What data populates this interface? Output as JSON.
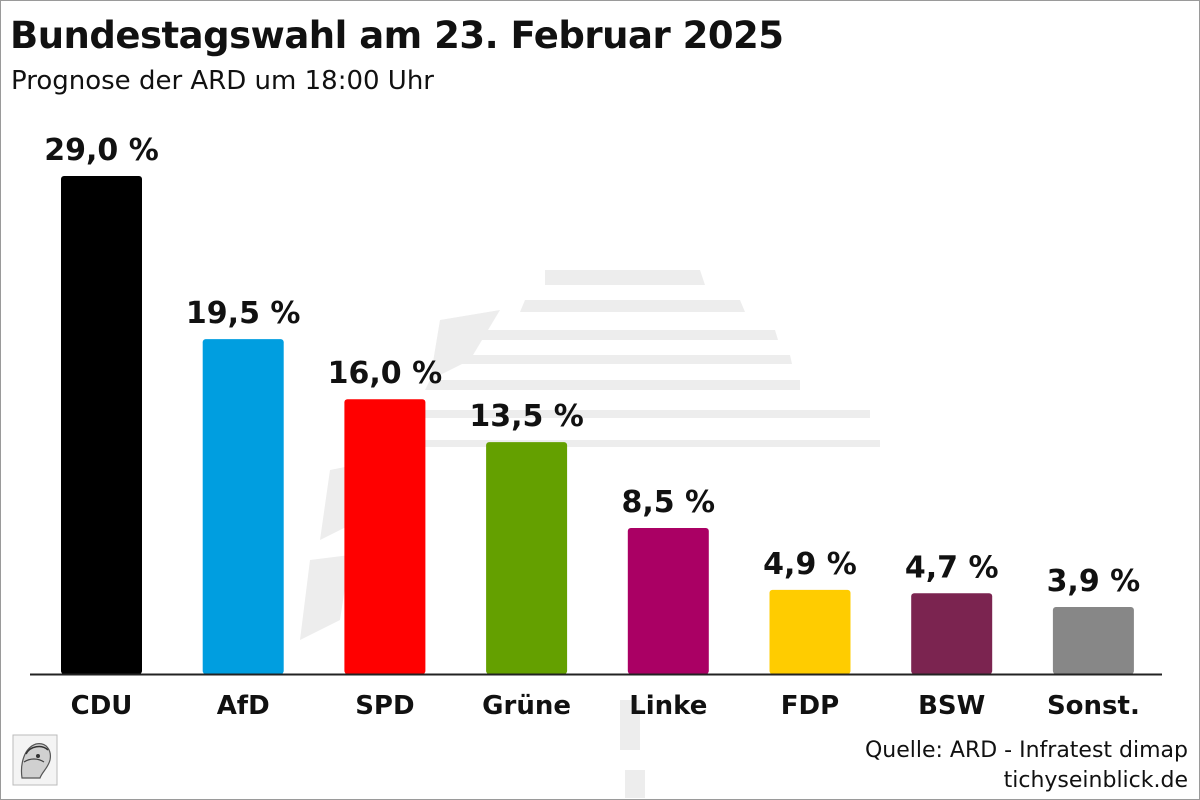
{
  "header": {
    "title": "Bundestagswahl am 23. Februar 2025",
    "subtitle": "Prognose der ARD um 18:00 Uhr"
  },
  "footer": {
    "source": "Quelle: ARD - Infratest dimap",
    "site": "tichyseinblick.de"
  },
  "chart_data": {
    "type": "bar",
    "title": "Bundestagswahl am 23. Februar 2025",
    "subtitle": "Prognose der ARD um 18:00 Uhr",
    "categories": [
      "CDU",
      "AfD",
      "SPD",
      "Grüne",
      "Linke",
      "FDP",
      "BSW",
      "Sonst."
    ],
    "values": [
      29.0,
      19.5,
      16.0,
      13.5,
      8.5,
      4.9,
      4.7,
      3.9
    ],
    "labels": [
      "29,0 %",
      "19,5 %",
      "16,0 %",
      "13,5 %",
      "8,5 %",
      "4,9 %",
      "4,7 %",
      "3,9 %"
    ],
    "colors": [
      "#000000",
      "#009ee0",
      "#ff0000",
      "#64a000",
      "#aa0064",
      "#ffcc00",
      "#7b2450",
      "#878787"
    ],
    "xlabel": "",
    "ylabel": "",
    "ylim": [
      0,
      29
    ],
    "grid": false,
    "legend": "none"
  }
}
